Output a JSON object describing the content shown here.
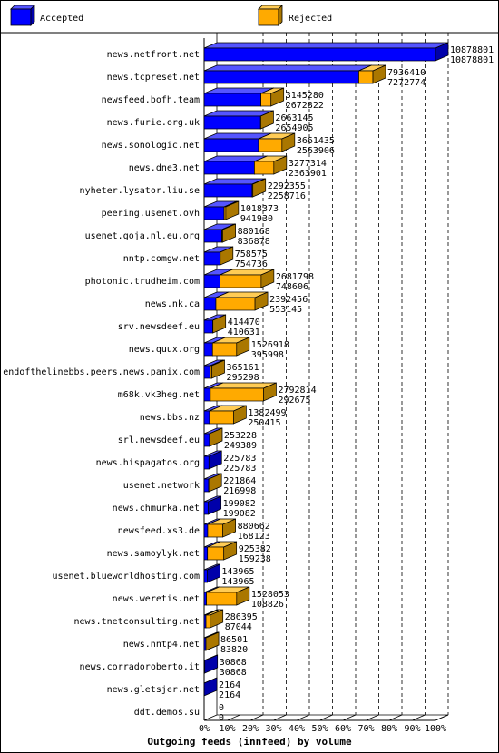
{
  "chart_data": {
    "type": "bar",
    "orientation": "horizontal",
    "stacked_3d": true,
    "xlabel": "Outgoing feeds (innfeed) by volume",
    "xlim": [
      0,
      100
    ],
    "x_ticks": [
      "0%",
      "10%",
      "20%",
      "30%",
      "40%",
      "50%",
      "60%",
      "70%",
      "80%",
      "90%",
      "100%"
    ],
    "max_value": 10878801,
    "grid": "vertical dashed",
    "legend_position": "top",
    "series": [
      {
        "name": "Accepted",
        "color": "#0000ff",
        "side": "#0000aa"
      },
      {
        "name": "Rejected",
        "color": "#ffaa00",
        "side": "#aa7700"
      }
    ],
    "categories": [
      "news.netfront.net",
      "news.tcpreset.net",
      "newsfeed.bofh.team",
      "news.furie.org.uk",
      "news.sonologic.net",
      "news.dne3.net",
      "nyheter.lysator.liu.se",
      "peering.usenet.ovh",
      "usenet.goja.nl.eu.org",
      "nntp.comgw.net",
      "photonic.trudheim.com",
      "news.nk.ca",
      "srv.newsdeef.eu",
      "news.quux.org",
      "endofthelinebbs.peers.news.panix.com",
      "m68k.vk3heg.net",
      "news.bbs.nz",
      "srl.newsdeef.eu",
      "news.hispagatos.org",
      "usenet.network",
      "news.chmurka.net",
      "newsfeed.xs3.de",
      "news.samoylyk.net",
      "usenet.blueworldhosting.com",
      "news.weretis.net",
      "news.tnetconsulting.net",
      "news.nntp4.net",
      "news.corradoroberto.it",
      "news.gletsjer.net",
      "ddt.demos.su"
    ],
    "offered": [
      "10878801",
      "7936410",
      "3145280",
      "2663145",
      "3661435",
      "3277314",
      "2292355",
      "1018373",
      "880168",
      "758575",
      "2681798",
      "2392456",
      "414470",
      "1526918",
      "365161",
      "2792814",
      "1382499",
      "253228",
      "225783",
      "221864",
      "199082",
      "880662",
      "925382",
      "143965",
      "1528053",
      "286395",
      "86501",
      "30868",
      "2164",
      "0"
    ],
    "accepted": [
      "10878801",
      "7272774",
      "2672822",
      "2654905",
      "2563906",
      "2363901",
      "2258716",
      "941930",
      "836878",
      "754736",
      "748606",
      "553145",
      "410631",
      "395998",
      "295298",
      "292675",
      "250415",
      "249389",
      "225783",
      "216998",
      "199082",
      "168123",
      "159238",
      "143965",
      "108826",
      "87044",
      "83820",
      "30868",
      "2164",
      "0"
    ]
  },
  "legend": {
    "accepted_label": "Accepted",
    "rejected_label": "Rejected"
  }
}
